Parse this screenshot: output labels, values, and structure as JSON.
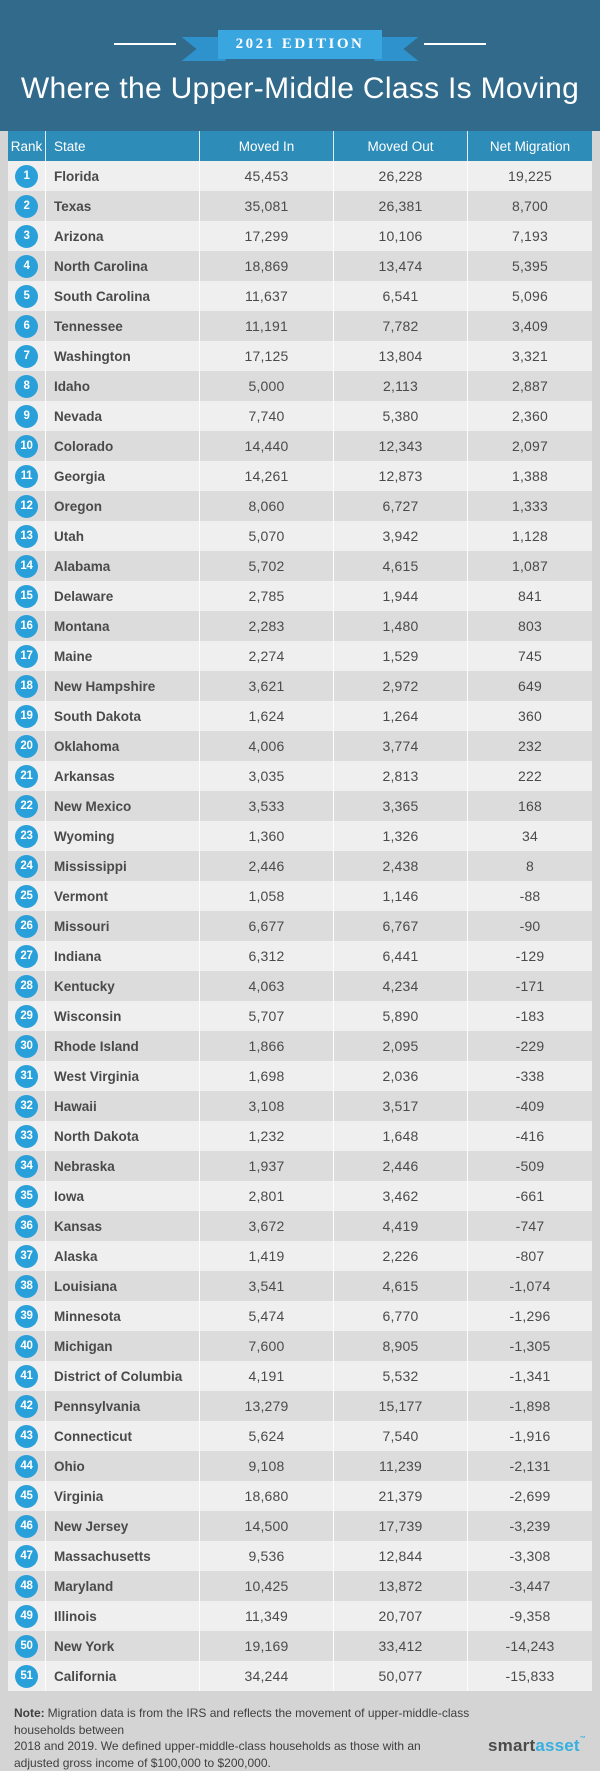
{
  "header": {
    "edition_badge": "2021 EDITION",
    "title": "Where the Upper-Middle Class Is Moving"
  },
  "chart_data": {
    "type": "table",
    "title": "Where the Upper-Middle Class Is Moving",
    "subtitle": "2021 EDITION",
    "columns": [
      "Rank",
      "State",
      "Moved In",
      "Moved Out",
      "Net Migration"
    ],
    "rows": [
      [
        "1",
        "Florida",
        "45,453",
        "26,228",
        "19,225"
      ],
      [
        "2",
        "Texas",
        "35,081",
        "26,381",
        "8,700"
      ],
      [
        "3",
        "Arizona",
        "17,299",
        "10,106",
        "7,193"
      ],
      [
        "4",
        "North Carolina",
        "18,869",
        "13,474",
        "5,395"
      ],
      [
        "5",
        "South Carolina",
        "11,637",
        "6,541",
        "5,096"
      ],
      [
        "6",
        "Tennessee",
        "11,191",
        "7,782",
        "3,409"
      ],
      [
        "7",
        "Washington",
        "17,125",
        "13,804",
        "3,321"
      ],
      [
        "8",
        "Idaho",
        "5,000",
        "2,113",
        "2,887"
      ],
      [
        "9",
        "Nevada",
        "7,740",
        "5,380",
        "2,360"
      ],
      [
        "10",
        "Colorado",
        "14,440",
        "12,343",
        "2,097"
      ],
      [
        "11",
        "Georgia",
        "14,261",
        "12,873",
        "1,388"
      ],
      [
        "12",
        "Oregon",
        "8,060",
        "6,727",
        "1,333"
      ],
      [
        "13",
        "Utah",
        "5,070",
        "3,942",
        "1,128"
      ],
      [
        "14",
        "Alabama",
        "5,702",
        "4,615",
        "1,087"
      ],
      [
        "15",
        "Delaware",
        "2,785",
        "1,944",
        "841"
      ],
      [
        "16",
        "Montana",
        "2,283",
        "1,480",
        "803"
      ],
      [
        "17",
        "Maine",
        "2,274",
        "1,529",
        "745"
      ],
      [
        "18",
        "New Hampshire",
        "3,621",
        "2,972",
        "649"
      ],
      [
        "19",
        "South Dakota",
        "1,624",
        "1,264",
        "360"
      ],
      [
        "20",
        "Oklahoma",
        "4,006",
        "3,774",
        "232"
      ],
      [
        "21",
        "Arkansas",
        "3,035",
        "2,813",
        "222"
      ],
      [
        "22",
        "New Mexico",
        "3,533",
        "3,365",
        "168"
      ],
      [
        "23",
        "Wyoming",
        "1,360",
        "1,326",
        "34"
      ],
      [
        "24",
        "Mississippi",
        "2,446",
        "2,438",
        "8"
      ],
      [
        "25",
        "Vermont",
        "1,058",
        "1,146",
        "-88"
      ],
      [
        "26",
        "Missouri",
        "6,677",
        "6,767",
        "-90"
      ],
      [
        "27",
        "Indiana",
        "6,312",
        "6,441",
        "-129"
      ],
      [
        "28",
        "Kentucky",
        "4,063",
        "4,234",
        "-171"
      ],
      [
        "29",
        "Wisconsin",
        "5,707",
        "5,890",
        "-183"
      ],
      [
        "30",
        "Rhode Island",
        "1,866",
        "2,095",
        "-229"
      ],
      [
        "31",
        "West Virginia",
        "1,698",
        "2,036",
        "-338"
      ],
      [
        "32",
        "Hawaii",
        "3,108",
        "3,517",
        "-409"
      ],
      [
        "33",
        "North Dakota",
        "1,232",
        "1,648",
        "-416"
      ],
      [
        "34",
        "Nebraska",
        "1,937",
        "2,446",
        "-509"
      ],
      [
        "35",
        "Iowa",
        "2,801",
        "3,462",
        "-661"
      ],
      [
        "36",
        "Kansas",
        "3,672",
        "4,419",
        "-747"
      ],
      [
        "37",
        "Alaska",
        "1,419",
        "2,226",
        "-807"
      ],
      [
        "38",
        "Louisiana",
        "3,541",
        "4,615",
        "-1,074"
      ],
      [
        "39",
        "Minnesota",
        "5,474",
        "6,770",
        "-1,296"
      ],
      [
        "40",
        "Michigan",
        "7,600",
        "8,905",
        "-1,305"
      ],
      [
        "41",
        "District of Columbia",
        "4,191",
        "5,532",
        "-1,341"
      ],
      [
        "42",
        "Pennsylvania",
        "13,279",
        "15,177",
        "-1,898"
      ],
      [
        "43",
        "Connecticut",
        "5,624",
        "7,540",
        "-1,916"
      ],
      [
        "44",
        "Ohio",
        "9,108",
        "11,239",
        "-2,131"
      ],
      [
        "45",
        "Virginia",
        "18,680",
        "21,379",
        "-2,699"
      ],
      [
        "46",
        "New Jersey",
        "14,500",
        "17,739",
        "-3,239"
      ],
      [
        "47",
        "Massachusetts",
        "9,536",
        "12,844",
        "-3,308"
      ],
      [
        "48",
        "Maryland",
        "10,425",
        "13,872",
        "-3,447"
      ],
      [
        "49",
        "Illinois",
        "11,349",
        "20,707",
        "-9,358"
      ],
      [
        "50",
        "New York",
        "19,169",
        "33,412",
        "-14,243"
      ],
      [
        "51",
        "California",
        "34,244",
        "50,077",
        "-15,833"
      ]
    ]
  },
  "footer": {
    "note_label": "Note:",
    "note_lines": [
      "Migration data is from the IRS and reflects the movement of upper-middle-class households between",
      "2018 and 2019. We defined upper-middle-class households as those with an",
      "adjusted gross income of $100,000 to $200,000."
    ],
    "brand": {
      "first": "smart",
      "second": "asset",
      "tm": "™"
    }
  },
  "colors": {
    "hero_bg": "#316a8a",
    "ribbon_blue": "#3aa6e0",
    "ribbon_dark": "#2e93cc",
    "thead_bg": "#2d8cb8",
    "row_light": "#efefef",
    "row_dark": "#dcdcdc",
    "page_bg": "#d4d4d4",
    "badge_blue": "#29a0da",
    "text_gray": "#4a4a4a",
    "brand_blue": "#35b0e0"
  }
}
